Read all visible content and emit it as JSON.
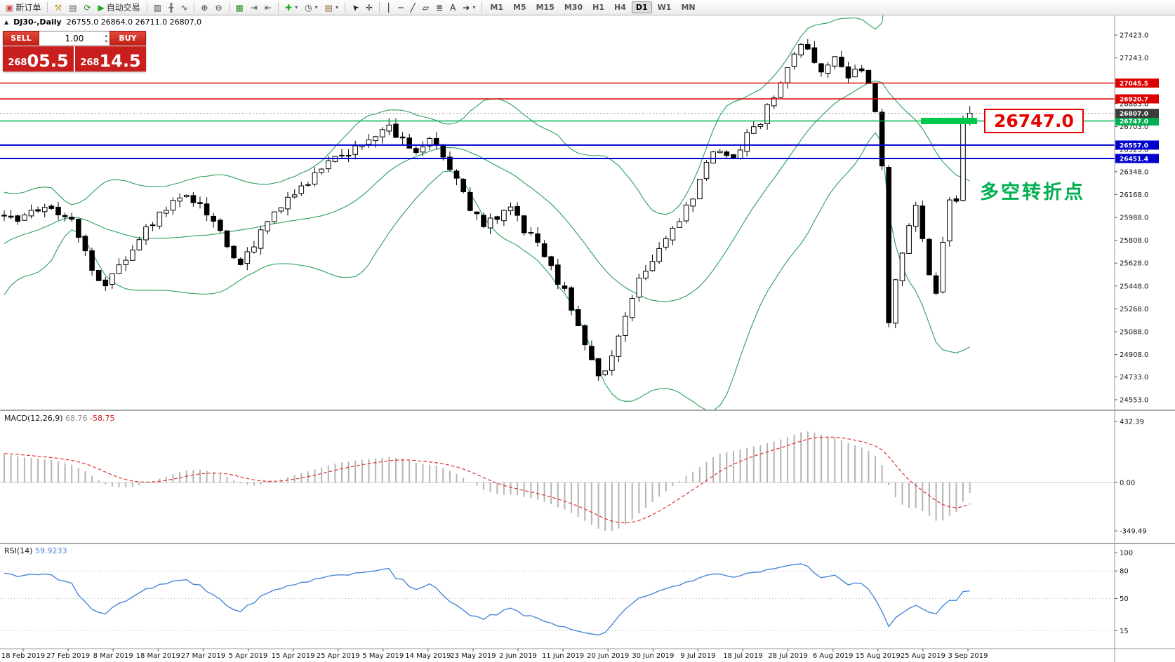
{
  "colors": {
    "line_red": "#dd0000",
    "line_green": "#00b050",
    "line_blue": "#0000cc",
    "highlight_green": "#00c84b",
    "quote_red": "#c81e1e",
    "bollinger_green": "#2aa05a",
    "macd_signal_red": "#e03030",
    "rsi_blue": "#4a86d8"
  },
  "toolbar": {
    "dropdown_glyph": "▾",
    "groups": [
      {
        "items": [
          {
            "name": "new-order-button",
            "glyph": "▣",
            "glyph_color": "#c84b4b",
            "label": "新订单"
          }
        ]
      },
      {
        "items": [
          {
            "name": "toolbox-icon",
            "glyph": "⚒",
            "glyph_color": "#c9a227"
          },
          {
            "name": "print-icon",
            "glyph": "▤",
            "glyph_color": "#666666"
          },
          {
            "name": "refresh-icon",
            "glyph": "⟳",
            "glyph_color": "#2a8f2a"
          },
          {
            "name": "autotrade-button",
            "glyph": "▶",
            "glyph_color": "#1faa1f",
            "label": "自动交易"
          }
        ]
      },
      {
        "items": [
          {
            "name": "bar-chart-icon",
            "glyph": "▥",
            "glyph_color": "#444444"
          },
          {
            "name": "candlestick-chart-icon",
            "glyph": "╫",
            "glyph_color": "#444444"
          },
          {
            "name": "line-chart-icon",
            "glyph": "∿",
            "glyph_color": "#444444"
          }
        ]
      },
      {
        "items": [
          {
            "name": "zoom-in-icon",
            "glyph": "⊕",
            "glyph_color": "#444444"
          },
          {
            "name": "zoom-out-icon",
            "glyph": "⊖",
            "glyph_color": "#444444"
          }
        ]
      },
      {
        "items": [
          {
            "name": "tile-windows-icon",
            "glyph": "▦",
            "glyph_color": "#2a8f2a"
          },
          {
            "name": "auto-scroll-icon",
            "glyph": "⇥",
            "glyph_color": "#444444"
          },
          {
            "name": "chart-shift-icon",
            "glyph": "⇤",
            "glyph_color": "#444444"
          }
        ]
      },
      {
        "items": [
          {
            "name": "indicators-menu",
            "glyph": "✚",
            "glyph_color": "#1faa1f",
            "dropdown": true
          },
          {
            "name": "periods-menu",
            "glyph": "◷",
            "glyph_color": "#444444",
            "dropdown": true
          },
          {
            "name": "templates-menu",
            "glyph": "▤",
            "glyph_color": "#8a6d3b",
            "dropdown": true
          }
        ]
      },
      {
        "items": [
          {
            "name": "cursor-tool",
            "glyph": "➤",
            "glyph_color": "#222222",
            "rotate": -135
          },
          {
            "name": "crosshair-tool",
            "glyph": "✛",
            "glyph_color": "#222222"
          }
        ]
      },
      {
        "items": [
          {
            "name": "vertical-line-tool",
            "glyph": "│",
            "glyph_color": "#222222"
          },
          {
            "name": "horizontal-line-tool",
            "glyph": "─",
            "glyph_color": "#222222"
          },
          {
            "name": "trendline-tool",
            "glyph": "╱",
            "glyph_color": "#222222"
          },
          {
            "name": "channel-tool",
            "glyph": "▱",
            "glyph_color": "#222222"
          },
          {
            "name": "fibonacci-tool",
            "glyph": "≣",
            "glyph_color": "#222222"
          },
          {
            "name": "text-tool",
            "glyph": "A",
            "glyph_color": "#222222"
          },
          {
            "name": "arrows-tool",
            "glyph": "➔",
            "glyph_color": "#222222",
            "dropdown": true
          }
        ]
      }
    ],
    "timeframes": [
      {
        "label": "M1"
      },
      {
        "label": "M5"
      },
      {
        "label": "M15"
      },
      {
        "label": "M30"
      },
      {
        "label": "H1"
      },
      {
        "label": "H4"
      },
      {
        "label": "D1",
        "active": true
      },
      {
        "label": "W1"
      },
      {
        "label": "MN"
      }
    ]
  },
  "chart_header": {
    "collapse_arrow": "▲",
    "symbol": "DJ30-,Daily",
    "ohlc": "26755.0 26864.0 26711.0 26807.0"
  },
  "one_click": {
    "sell_label": "SELL",
    "buy_label": "BUY",
    "volume": "1.00",
    "spinner_up": "▴",
    "spinner_down": "▾",
    "sell_price": "26805.5",
    "buy_price": "26814.5"
  },
  "annotations": {
    "price_callout": "26747.0",
    "note_text": "多空转折点"
  },
  "macd_panel": {
    "name": "MACD(12,26,9)",
    "main_value": "68.76",
    "signal_value": "-58.75",
    "scale_labels": [
      "432.39",
      "0.00",
      "-349.49"
    ]
  },
  "rsi_panel": {
    "name": "RSI(14)",
    "value": "59.9233",
    "scale_labels": [
      "100",
      "80",
      "50",
      "15"
    ]
  },
  "chart_data": {
    "type": "candlestick",
    "symbol": "DJ30-",
    "timeframe": "Daily",
    "last_candle_ohlc": {
      "open": 26755.0,
      "high": 26864.0,
      "low": 26711.0,
      "close": 26807.0
    },
    "current_price": 26807.0,
    "price_axis": {
      "visible_min": 24553.0,
      "visible_max": 27423.0,
      "tick_values": [
        27423,
        27243,
        26883,
        26703,
        26523,
        26348,
        26168,
        25988,
        25808,
        25628,
        25448,
        25268,
        25088,
        24908,
        24733,
        24553
      ]
    },
    "horizontal_lines": [
      {
        "price": 27045.5,
        "color": "#dd0000",
        "width": 1.4
      },
      {
        "price": 26920.7,
        "color": "#dd0000",
        "width": 1.4
      },
      {
        "price": 26747.0,
        "color": "#00b050",
        "width": 1.6
      },
      {
        "price": 26557.0,
        "color": "#0000cc",
        "width": 2
      },
      {
        "price": 26451.4,
        "color": "#0000cc",
        "width": 2
      }
    ],
    "indicators": {
      "bollinger": {
        "period": 20,
        "deviation": 2,
        "color": "#2aa05a"
      },
      "macd": {
        "fast": 12,
        "slow": 26,
        "signal": 9,
        "last_main": 68.76,
        "last_signal": -58.75,
        "scale_max": 432.39,
        "scale_min": -349.49
      },
      "rsi": {
        "period": 14,
        "last_value": 59.9233,
        "levels": [
          80,
          50,
          15
        ]
      }
    },
    "price_path_anchors": [
      [
        -25,
        24950
      ],
      [
        -20,
        25250
      ],
      [
        -16,
        25750
      ],
      [
        -12,
        25500
      ],
      [
        -8,
        26050
      ],
      [
        -4,
        25850
      ],
      [
        -2,
        25980
      ],
      [
        0,
        26020
      ],
      [
        2,
        25950
      ],
      [
        4,
        26010
      ],
      [
        6,
        26090
      ],
      [
        8,
        26020
      ],
      [
        10,
        25940
      ],
      [
        12,
        25730
      ],
      [
        14,
        25480
      ],
      [
        15,
        25420
      ],
      [
        17,
        25600
      ],
      [
        19,
        25760
      ],
      [
        22,
        25960
      ],
      [
        25,
        26120
      ],
      [
        27,
        26160
      ],
      [
        29,
        26080
      ],
      [
        31,
        25960
      ],
      [
        33,
        25760
      ],
      [
        35,
        25630
      ],
      [
        37,
        25780
      ],
      [
        40,
        26020
      ],
      [
        43,
        26160
      ],
      [
        46,
        26320
      ],
      [
        49,
        26440
      ],
      [
        52,
        26540
      ],
      [
        55,
        26650
      ],
      [
        57,
        26680
      ],
      [
        59,
        26580
      ],
      [
        61,
        26520
      ],
      [
        63,
        26600
      ],
      [
        65,
        26460
      ],
      [
        67,
        26280
      ],
      [
        69,
        26060
      ],
      [
        71,
        25920
      ],
      [
        73,
        25980
      ],
      [
        75,
        26060
      ],
      [
        77,
        25900
      ],
      [
        79,
        25780
      ],
      [
        81,
        25580
      ],
      [
        83,
        25400
      ],
      [
        85,
        25150
      ],
      [
        87,
        24880
      ],
      [
        88,
        24720
      ],
      [
        90,
        24880
      ],
      [
        92,
        25240
      ],
      [
        94,
        25480
      ],
      [
        96,
        25650
      ],
      [
        98,
        25820
      ],
      [
        100,
        25980
      ],
      [
        102,
        26140
      ],
      [
        104,
        26420
      ],
      [
        106,
        26520
      ],
      [
        108,
        26450
      ],
      [
        110,
        26640
      ],
      [
        112,
        26750
      ],
      [
        114,
        26950
      ],
      [
        116,
        27180
      ],
      [
        118,
        27330
      ],
      [
        119,
        27280
      ],
      [
        121,
        27160
      ],
      [
        123,
        27240
      ],
      [
        125,
        27120
      ],
      [
        127,
        27160
      ],
      [
        128,
        27060
      ],
      [
        129,
        26820
      ],
      [
        130,
        26380
      ],
      [
        131,
        25150
      ],
      [
        132,
        25480
      ],
      [
        133,
        25720
      ],
      [
        134,
        25950
      ],
      [
        135,
        26050
      ],
      [
        136,
        25800
      ],
      [
        137,
        25560
      ],
      [
        138,
        25420
      ],
      [
        139,
        25800
      ],
      [
        140,
        26150
      ],
      [
        141,
        26150
      ],
      [
        142,
        26720
      ],
      [
        143,
        26807
      ]
    ],
    "date_labels": [
      "18 Feb 2019",
      "27 Feb 2019",
      "8 Mar 2019",
      "18 Mar 2019",
      "27 Mar 2019",
      "5 Apr 2019",
      "15 Apr 2019",
      "25 Apr 2019",
      "5 May 2019",
      "14 May 2019",
      "23 May 2019",
      "2 Jun 2019",
      "11 Jun 2019",
      "20 Jun 2019",
      "30 Jun 2019",
      "9 Jul 2019",
      "18 Jul 2019",
      "28 Jul 2019",
      "6 Aug 2019",
      "15 Aug 2019",
      "25 Aug 2019",
      "3 Sep 2019"
    ]
  }
}
